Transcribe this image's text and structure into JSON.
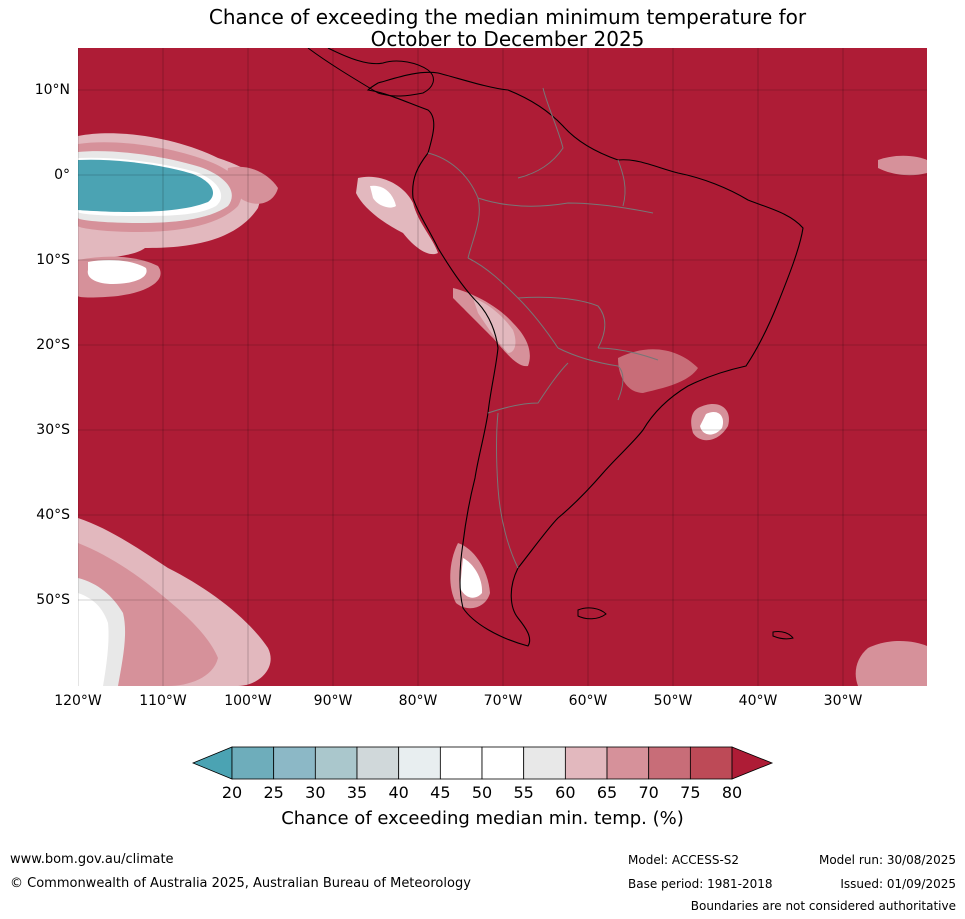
{
  "title_line1": "Chance of exceeding the median minimum temperature for",
  "title_line2": "October to December 2025",
  "lat_labels": [
    "10°N",
    "0°",
    "10°S",
    "20°S",
    "30°S",
    "40°S",
    "50°S"
  ],
  "lon_labels": [
    "120°W",
    "110°W",
    "100°W",
    "90°W",
    "80°W",
    "70°W",
    "60°W",
    "50°W",
    "40°W",
    "30°W"
  ],
  "colorbar": {
    "ticks": [
      "20",
      "25",
      "30",
      "35",
      "40",
      "45",
      "50",
      "55",
      "60",
      "65",
      "70",
      "75",
      "80"
    ],
    "colors": [
      "#4ba3b3",
      "#6eadbb",
      "#8cb8c6",
      "#aac7cc",
      "#d0d8da",
      "#e8eef0",
      "#ffffff",
      "#ffffff",
      "#e8e8e8",
      "#e2b8be",
      "#d6919a",
      "#c86d78",
      "#bd4a57",
      "#ae1c36"
    ],
    "label": "Chance of exceeding median min. temp. (%)"
  },
  "footer": {
    "website": "www.bom.gov.au/climate",
    "copyright": "© Commonwealth of Australia 2025, Australian Bureau of Meteorology",
    "model": "Model: ACCESS-S2",
    "base_period": "Base period: 1981-2018",
    "model_run": "Model run: 30/08/2025",
    "issued": "Issued: 01/09/2025",
    "disclaimer": "Boundaries are not considered authoritative"
  }
}
